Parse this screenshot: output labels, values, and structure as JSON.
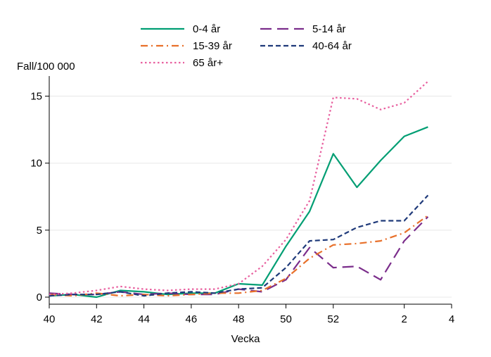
{
  "chart_data": {
    "type": "line",
    "title": "",
    "xlabel": "Vecka",
    "ylabel": "Fall/100 000",
    "x": [
      "40",
      "41",
      "42",
      "43",
      "44",
      "45",
      "46",
      "47",
      "48",
      "49",
      "50",
      "51",
      "52",
      "53",
      "1",
      "2",
      "3",
      "4"
    ],
    "xticks": [
      "40",
      "42",
      "44",
      "46",
      "48",
      "50",
      "52",
      "2",
      "4"
    ],
    "yticks": [
      0,
      5,
      10,
      15
    ],
    "ylim": [
      0,
      16.5
    ],
    "grid": true,
    "legend_position": "top",
    "series": [
      {
        "name": "0-4 år",
        "color": "#009E73",
        "dash": "solid",
        "values": [
          0.1,
          0.2,
          0.0,
          0.5,
          0.4,
          0.2,
          0.3,
          0.3,
          1.0,
          0.9,
          3.8,
          6.4,
          10.7,
          8.2,
          10.2,
          12.0,
          12.7,
          null
        ]
      },
      {
        "name": "5-14 år",
        "color": "#7B2D8B",
        "dash": "longdash",
        "values": [
          0.3,
          0.2,
          0.2,
          0.4,
          0.2,
          0.3,
          0.2,
          0.2,
          0.6,
          0.4,
          1.3,
          3.7,
          2.2,
          2.3,
          1.3,
          4.2,
          6.0,
          null
        ]
      },
      {
        "name": "15-39 år",
        "color": "#E8702A",
        "dash": "dashdot",
        "values": [
          0.2,
          0.1,
          0.3,
          0.1,
          0.2,
          0.1,
          0.2,
          0.3,
          0.3,
          0.5,
          1.4,
          2.9,
          3.9,
          4.0,
          4.2,
          4.8,
          6.1,
          null
        ]
      },
      {
        "name": "40-64 år",
        "color": "#1F3A7A",
        "dash": "dash",
        "values": [
          0.1,
          0.2,
          0.2,
          0.4,
          0.1,
          0.3,
          0.4,
          0.3,
          0.6,
          0.7,
          2.2,
          4.2,
          4.3,
          5.2,
          5.7,
          5.7,
          7.6,
          null
        ]
      },
      {
        "name": "65 år+",
        "color": "#E8609F",
        "dash": "dot",
        "values": [
          0.2,
          0.3,
          0.5,
          0.8,
          0.6,
          0.5,
          0.6,
          0.6,
          1.0,
          2.3,
          4.3,
          7.2,
          14.9,
          14.8,
          14.0,
          14.5,
          16.1,
          null
        ]
      }
    ]
  }
}
